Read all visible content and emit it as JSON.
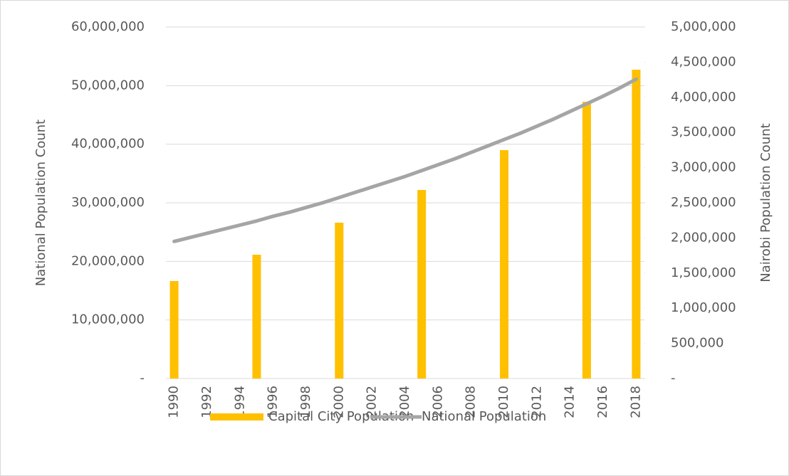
{
  "chart_data": {
    "type": "combo",
    "y_label": "National Population Count",
    "y2_label": "Nairobi Population Count",
    "categories": [
      "1990",
      null,
      "1992",
      null,
      "1994",
      null,
      "1996",
      null,
      "1998",
      null,
      "2000",
      null,
      "2002",
      null,
      "2004",
      null,
      "2006",
      null,
      "2008",
      null,
      "2010",
      null,
      "2012",
      null,
      "2014",
      null,
      "2016",
      null,
      "2018"
    ],
    "series": [
      {
        "name": "Capital City Population",
        "type": "bar",
        "axis": "y2",
        "color": "#ffc000",
        "values": [
          1387000,
          null,
          null,
          null,
          null,
          1761000,
          null,
          null,
          null,
          null,
          2217000,
          null,
          null,
          null,
          null,
          2682000,
          null,
          null,
          null,
          null,
          3249000,
          null,
          null,
          null,
          null,
          3937000,
          null,
          null,
          4393000
        ]
      },
      {
        "name": "National Population",
        "type": "line",
        "color": "#a5a5a5",
        "values": [
          23400000,
          24100000,
          24800000,
          25500000,
          26200000,
          26900000,
          27700000,
          28400000,
          29200000,
          30000000,
          30900000,
          31800000,
          32700000,
          33600000,
          34500000,
          35500000,
          36500000,
          37500000,
          38600000,
          39700000,
          40800000,
          41900000,
          43100000,
          44300000,
          45600000,
          46900000,
          48200000,
          49600000,
          51100000
        ]
      }
    ],
    "ylim": [
      0,
      60000000
    ],
    "yticks": [
      {
        "value": 0,
        "label": "-"
      },
      {
        "value": 10000000,
        "label": "10,000,000"
      },
      {
        "value": 20000000,
        "label": "20,000,000"
      },
      {
        "value": 30000000,
        "label": "30,000,000"
      },
      {
        "value": 40000000,
        "label": "40,000,000"
      },
      {
        "value": 50000000,
        "label": "50,000,000"
      },
      {
        "value": 60000000,
        "label": "60,000,000"
      }
    ],
    "y2lim": [
      0,
      5000000
    ],
    "y2ticks": [
      {
        "value": 0,
        "label": "-"
      },
      {
        "value": 500000,
        "label": "500,000"
      },
      {
        "value": 1000000,
        "label": "1,000,000"
      },
      {
        "value": 1500000,
        "label": "1,500,000"
      },
      {
        "value": 2000000,
        "label": "2,000,000"
      },
      {
        "value": 2500000,
        "label": "2,500,000"
      },
      {
        "value": 3000000,
        "label": "3,000,000"
      },
      {
        "value": 3500000,
        "label": "3,500,000"
      },
      {
        "value": 4000000,
        "label": "4,000,000"
      },
      {
        "value": 4500000,
        "label": "4,500,000"
      },
      {
        "value": 5000000,
        "label": "5,000,000"
      }
    ],
    "grid": true,
    "legend": "bottom"
  }
}
